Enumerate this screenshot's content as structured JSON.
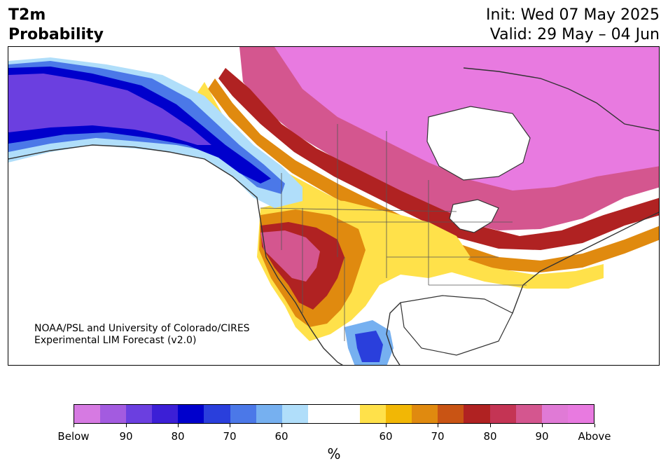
{
  "title": {
    "variable": "T2m",
    "product": "Probability",
    "init": "Init: Wed 07 May 2025",
    "valid": "Valid: 29 May – 04 Jun"
  },
  "credit": {
    "line1": "NOAA/PSL and University of Colorado/CIRES",
    "line2": "Experimental LIM Forecast (v2.0)"
  },
  "colorbar": {
    "colors": [
      "#d67ae2",
      "#a35be0",
      "#6b3fe0",
      "#3c1fd6",
      "#0000cc",
      "#2a3fdc",
      "#4b78e8",
      "#76b0f0",
      "#b0defa",
      "#ffffff",
      "#ffffff",
      "#ffe14a",
      "#f2b705",
      "#e08a0f",
      "#c95414",
      "#b02222",
      "#c43454",
      "#d4568f",
      "#e07ad6",
      "#e87ae0"
    ],
    "tick_labels": [
      "Below",
      "90",
      "80",
      "70",
      "60",
      "60",
      "70",
      "80",
      "90",
      "Above"
    ],
    "unit": "%"
  },
  "legend_colors": {
    "below_strong": "#0000cc",
    "below_weak": "#b0defa",
    "above_weak": "#ffe14a",
    "above_mid": "#e08a0f",
    "above_strong": "#b02222",
    "above_max": "#e87ae0"
  }
}
